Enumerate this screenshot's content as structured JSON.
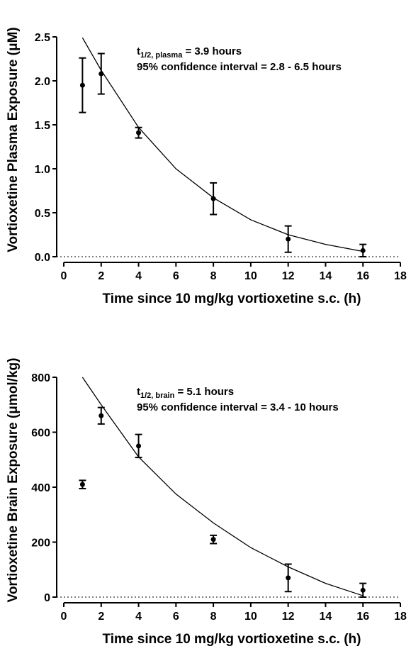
{
  "chart_data": [
    {
      "type": "scatter",
      "color": "#000000",
      "x_label": "Time since 10 mg/kg vortioxetine s.c. (h)",
      "y_label": "Vortioxetine Plasma Exposure (μM)",
      "annotation": {
        "symbol": "t",
        "subscript": "1/2, plasma",
        "text": " = 3.9 hours",
        "line2": "95% confidence interval = 2.8 - 6.5 hours"
      },
      "x": [
        1,
        2,
        4,
        8,
        12,
        16
      ],
      "values": [
        1.95,
        2.08,
        1.41,
        0.66,
        0.2,
        0.07
      ],
      "errors": [
        0.31,
        0.23,
        0.06,
        0.18,
        0.15,
        0.07
      ],
      "fit": {
        "x": [
          1,
          2,
          4,
          6,
          8,
          10,
          12,
          14,
          16
        ],
        "values": [
          2.49,
          2.12,
          1.47,
          1.0,
          0.67,
          0.42,
          0.25,
          0.14,
          0.06
        ]
      },
      "xlim": [
        0,
        18
      ],
      "ylim": [
        0,
        2.5
      ],
      "xticks": [
        0,
        2,
        4,
        6,
        8,
        10,
        12,
        14,
        16,
        18
      ],
      "yticks": [
        {
          "value": 0,
          "label": "0.0"
        },
        {
          "value": 0.5,
          "label": "0.5"
        },
        {
          "value": 1,
          "label": "1.0"
        },
        {
          "value": 1.5,
          "label": "1.5"
        },
        {
          "value": 2,
          "label": "2.0"
        },
        {
          "value": 2.5,
          "label": "2.5"
        }
      ]
    },
    {
      "type": "scatter",
      "color": "#000000",
      "x_label": "Time since 10 mg/kg vortioxetine s.c. (h)",
      "y_label": "Vortioxetine Brain Exposure (μmol/kg)",
      "annotation": {
        "symbol": "t",
        "subscript": "1/2, brain",
        "text": " = 5.1 hours",
        "line2": "95% confidence interval = 3.4 - 10 hours"
      },
      "x": [
        1,
        2,
        4,
        8,
        12,
        16
      ],
      "values": [
        410,
        660,
        550,
        210,
        70,
        25
      ],
      "errors": [
        15,
        30,
        42,
        15,
        50,
        25
      ],
      "fit": {
        "x": [
          1,
          2,
          4,
          6,
          8,
          10,
          12,
          14,
          16
        ],
        "values": [
          800,
          700,
          510,
          375,
          270,
          180,
          110,
          50,
          5
        ]
      },
      "xlim": [
        0,
        18
      ],
      "ylim": [
        0,
        800
      ],
      "xticks": [
        0,
        2,
        4,
        6,
        8,
        10,
        12,
        14,
        16,
        18
      ],
      "yticks": [
        0,
        200,
        400,
        600,
        800
      ]
    }
  ]
}
